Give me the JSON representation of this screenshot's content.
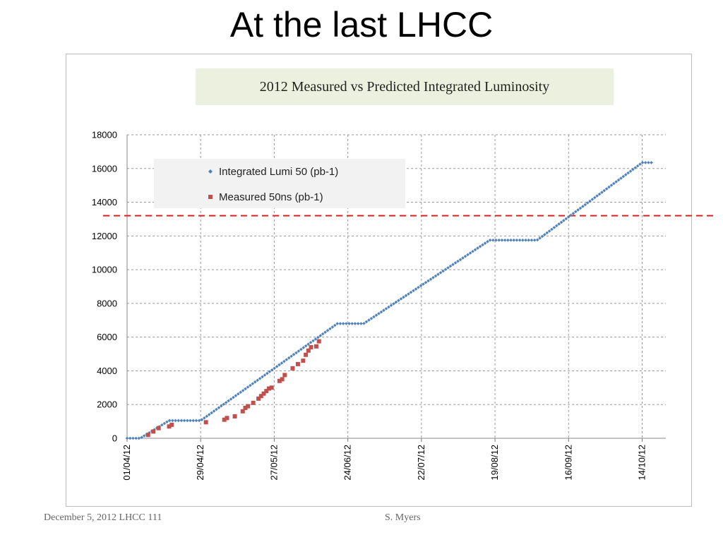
{
  "slide": {
    "title": "At the last LHCC",
    "footer_left": "December 5, 2012  LHCC 111",
    "footer_right": "S. Myers"
  },
  "chart_data": {
    "type": "scatter",
    "title": "2012 Measured vs Predicted Integrated Luminosity",
    "xlabel": "",
    "ylabel": "",
    "xlim": [
      "2012-04-01",
      "2012-10-23"
    ],
    "ylim": [
      0,
      18000
    ],
    "y_ticks": [
      0,
      2000,
      4000,
      6000,
      8000,
      10000,
      12000,
      14000,
      16000,
      18000
    ],
    "x_ticks": [
      "01/04/12",
      "29/04/12",
      "27/05/12",
      "24/06/12",
      "22/07/12",
      "19/08/12",
      "16/09/12",
      "14/10/12"
    ],
    "grid": true,
    "legend_position": "top-left",
    "reference_line": {
      "y": 13200,
      "style": "dashed",
      "color": "#e02020"
    },
    "series": [
      {
        "name": "Integrated Lumi 50 (pb-1)",
        "color": "#4f81bd",
        "marker": "diamond",
        "points": [
          [
            "2012-04-01",
            0
          ],
          [
            "2012-04-06",
            0
          ],
          [
            "2012-04-17",
            1050
          ],
          [
            "2012-04-29",
            1050
          ],
          [
            "2012-06-20",
            6800
          ],
          [
            "2012-06-30",
            6800
          ],
          [
            "2012-08-17",
            11750
          ],
          [
            "2012-09-04",
            11750
          ],
          [
            "2012-10-14",
            16350
          ],
          [
            "2012-10-18",
            16350
          ]
        ]
      },
      {
        "name": "Measured 50ns (pb-1)",
        "color": "#c0504d",
        "marker": "square",
        "points": [
          [
            "2012-04-09",
            200
          ],
          [
            "2012-04-11",
            400
          ],
          [
            "2012-04-13",
            600
          ],
          [
            "2012-04-17",
            700
          ],
          [
            "2012-04-18",
            800
          ],
          [
            "2012-05-01",
            950
          ],
          [
            "2012-05-08",
            1100
          ],
          [
            "2012-05-09",
            1200
          ],
          [
            "2012-05-12",
            1300
          ],
          [
            "2012-05-15",
            1600
          ],
          [
            "2012-05-16",
            1800
          ],
          [
            "2012-05-17",
            1900
          ],
          [
            "2012-05-19",
            2100
          ],
          [
            "2012-05-21",
            2350
          ],
          [
            "2012-05-22",
            2500
          ],
          [
            "2012-05-23",
            2650
          ],
          [
            "2012-05-24",
            2800
          ],
          [
            "2012-05-25",
            2950
          ],
          [
            "2012-05-26",
            3000
          ],
          [
            "2012-05-29",
            3400
          ],
          [
            "2012-05-30",
            3500
          ],
          [
            "2012-05-31",
            3750
          ],
          [
            "2012-06-03",
            4150
          ],
          [
            "2012-06-05",
            4400
          ],
          [
            "2012-06-07",
            4600
          ],
          [
            "2012-06-08",
            4950
          ],
          [
            "2012-06-09",
            5200
          ],
          [
            "2012-06-10",
            5400
          ],
          [
            "2012-06-12",
            5450
          ],
          [
            "2012-06-13",
            5750
          ]
        ]
      }
    ]
  }
}
